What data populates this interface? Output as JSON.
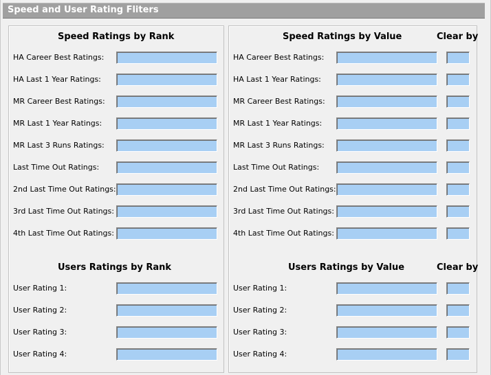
{
  "window_title": "Speed and User Rating Fliters",
  "left_panel": {
    "speed_heading": "Speed Ratings by Rank",
    "speed_rows": [
      {
        "label": "HA Career Best Ratings:",
        "value": ""
      },
      {
        "label": "HA Last 1 Year Ratings:",
        "value": ""
      },
      {
        "label": "MR Career Best Ratings:",
        "value": ""
      },
      {
        "label": "MR Last 1 Year Ratings:",
        "value": ""
      },
      {
        "label": "MR Last 3 Runs Ratings:",
        "value": ""
      },
      {
        "label": "Last Time Out Ratings:",
        "value": ""
      },
      {
        "label": "2nd Last Time Out Ratings:",
        "value": ""
      },
      {
        "label": "3rd Last Time Out Ratings:",
        "value": ""
      },
      {
        "label": "4th Last Time Out Ratings:",
        "value": ""
      }
    ],
    "user_heading": "Users Ratings by Rank",
    "user_rows": [
      {
        "label": "User Rating 1:",
        "value": ""
      },
      {
        "label": "User Rating 2:",
        "value": ""
      },
      {
        "label": "User Rating 3:",
        "value": ""
      },
      {
        "label": "User Rating 4:",
        "value": ""
      }
    ]
  },
  "right_panel": {
    "speed_heading": "Speed Ratings by Value",
    "clear_by_heading": "Clear by",
    "speed_rows": [
      {
        "label": "HA Career Best Ratings:",
        "value": "",
        "clear_by": ""
      },
      {
        "label": "HA Last 1 Year Ratings:",
        "value": "",
        "clear_by": ""
      },
      {
        "label": "MR Career Best Ratings:",
        "value": "",
        "clear_by": ""
      },
      {
        "label": "MR Last 1 Year Ratings:",
        "value": "",
        "clear_by": ""
      },
      {
        "label": "MR Last 3 Runs Ratings:",
        "value": "",
        "clear_by": ""
      },
      {
        "label": "Last Time Out Ratings:",
        "value": "",
        "clear_by": ""
      },
      {
        "label": "2nd Last Time Out Ratings:",
        "value": "",
        "clear_by": ""
      },
      {
        "label": "3rd Last Time Out Ratings:",
        "value": "",
        "clear_by": ""
      },
      {
        "label": "4th Last Time Out Ratings:",
        "value": "",
        "clear_by": ""
      }
    ],
    "user_heading": "Users Ratings by Value",
    "user_clear_by_heading": "Clear by",
    "user_rows": [
      {
        "label": "User Rating 1:",
        "value": "",
        "clear_by": ""
      },
      {
        "label": "User Rating 2:",
        "value": "",
        "clear_by": ""
      },
      {
        "label": "User Rating 3:",
        "value": "",
        "clear_by": ""
      },
      {
        "label": "User Rating 4:",
        "value": "",
        "clear_by": ""
      }
    ]
  },
  "colors": {
    "title_bar": "#a0a0a0",
    "input_fill": "#a8cff4",
    "panel_bg": "#f0f0f0"
  }
}
